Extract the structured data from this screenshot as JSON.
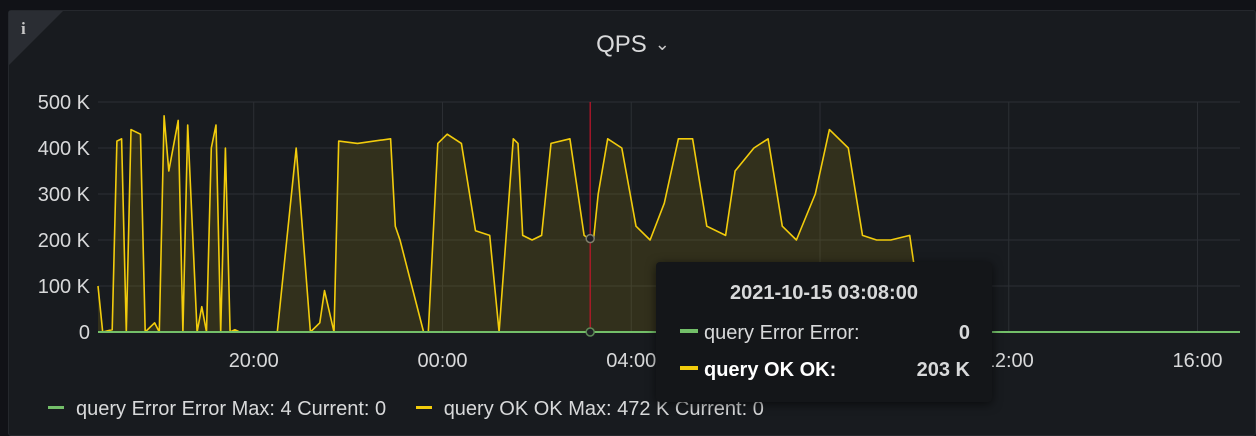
{
  "panel": {
    "title": "QPS",
    "info_icon": "info-icon",
    "menu_icon": "chevron-down-icon"
  },
  "colors": {
    "error": "#73bf69",
    "ok": "#f2cc0c",
    "cursor": "#c4162a",
    "grid": "#2c2f34"
  },
  "tooltip": {
    "time": "2021-10-15 03:08:00",
    "rows": [
      {
        "label": "query Error Error:",
        "value": "0"
      },
      {
        "label": "query OK OK:",
        "value": "203 K"
      }
    ]
  },
  "legend": [
    {
      "name": "query Error Error",
      "max_label": "Max:",
      "max": "4",
      "current_label": "Current:",
      "current": "0"
    },
    {
      "name": "query OK OK",
      "max_label": "Max:",
      "max": "472 K",
      "current_label": "Current:",
      "current": "0"
    }
  ],
  "chart_data": {
    "type": "line",
    "ylim": [
      0,
      500000
    ],
    "y_ticks": [
      "0",
      "100 K",
      "200 K",
      "300 K",
      "400 K",
      "500 K"
    ],
    "x_ticks": [
      "20:00",
      "00:00",
      "04:00",
      "08:00",
      "12:00",
      "16:00"
    ],
    "x_tick_hours": [
      20,
      24,
      28,
      32,
      36,
      40
    ],
    "xlim_hours": [
      16.7,
      40.9
    ],
    "cursor_hour": 27.13,
    "series": [
      {
        "name": "query Error Error",
        "x": [
          16.7,
          40.9
        ],
        "y": [
          0,
          0
        ]
      },
      {
        "name": "query OK OK",
        "x": [
          16.7,
          16.8,
          17.0,
          17.1,
          17.2,
          17.3,
          17.4,
          17.6,
          17.7,
          17.9,
          18.0,
          18.1,
          18.2,
          18.4,
          18.5,
          18.6,
          18.8,
          18.9,
          19.0,
          19.1,
          19.2,
          19.3,
          19.4,
          19.5,
          19.6,
          19.7,
          19.8,
          19.9,
          20.0,
          20.5,
          20.9,
          21.2,
          21.4,
          21.5,
          21.7,
          21.8,
          22.2,
          22.9,
          23.0,
          23.1,
          23.6,
          23.7,
          23.9,
          24.1,
          24.4,
          24.7,
          25.0,
          25.2,
          25.5,
          25.6,
          25.7,
          25.9,
          26.1,
          26.3,
          26.7,
          27.0,
          27.1,
          27.2,
          27.3,
          27.5,
          27.8,
          28.1,
          28.4,
          28.7,
          29.0,
          29.3,
          29.6,
          30.0,
          30.2,
          30.6,
          30.9,
          31.2,
          31.5,
          31.9,
          32.2,
          32.6,
          32.9,
          33.2,
          33.5,
          33.9,
          34.2,
          34.5,
          34.9,
          35.2,
          35.5,
          35.6,
          36.0,
          37.0,
          38.0,
          40.9
        ],
        "y": [
          100000,
          0,
          5000,
          415000,
          420000,
          0,
          440000,
          430000,
          0,
          20000,
          0,
          470000,
          350000,
          460000,
          0,
          450000,
          0,
          55000,
          0,
          400000,
          450000,
          0,
          400000,
          0,
          5000,
          0,
          0,
          0,
          0,
          0,
          400000,
          0,
          20000,
          90000,
          0,
          415000,
          410000,
          420000,
          230000,
          200000,
          0,
          0,
          410000,
          430000,
          410000,
          220000,
          210000,
          0,
          420000,
          410000,
          210000,
          200000,
          210000,
          410000,
          420000,
          210000,
          203000,
          200000,
          300000,
          420000,
          400000,
          230000,
          200000,
          280000,
          420000,
          420000,
          230000,
          210000,
          350000,
          400000,
          420000,
          230000,
          200000,
          300000,
          440000,
          400000,
          210000,
          200000,
          200000,
          210000,
          0,
          0,
          0,
          0,
          0,
          0,
          0,
          0,
          0,
          0
        ]
      }
    ]
  }
}
